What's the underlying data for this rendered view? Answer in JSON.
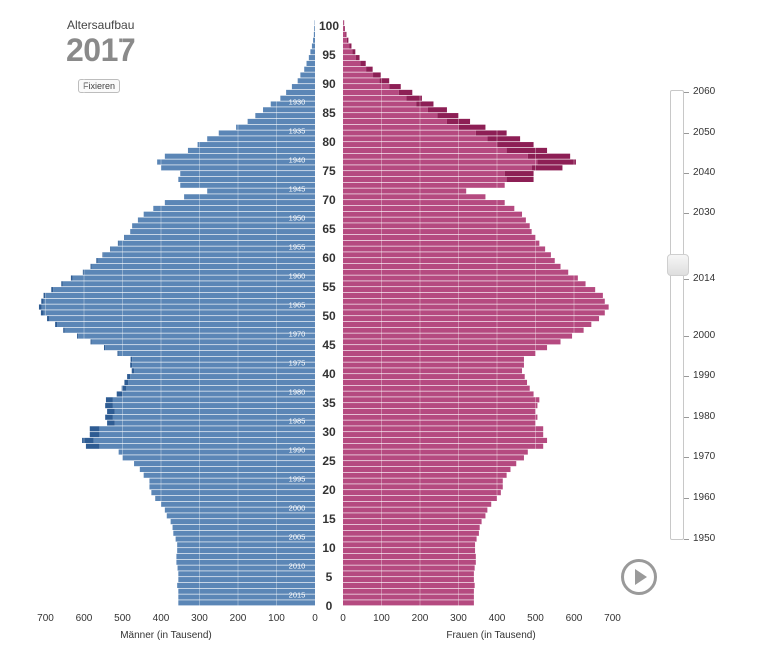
{
  "header": {
    "subtitle": "Altersaufbau",
    "year": "2017",
    "fix_button": "Fixieren"
  },
  "slider": {
    "labels": [
      "2060",
      "2050",
      "2040",
      "2030",
      "2014",
      "2000",
      "1990",
      "1980",
      "1970",
      "1960",
      "1950"
    ],
    "selected": "2014"
  },
  "play_icon": "play-icon",
  "colors": {
    "male": "#5b86b6",
    "male_dark": "#2e5c93",
    "female": "#b54a80",
    "female_dark": "#8d1f55"
  },
  "chart_data": {
    "type": "bar",
    "orientation": "horizontal-population-pyramid",
    "age_axis_ticks": [
      0,
      5,
      10,
      15,
      20,
      25,
      30,
      35,
      40,
      45,
      50,
      55,
      60,
      65,
      70,
      75,
      80,
      85,
      90,
      95,
      100
    ],
    "birth_year_labels": [
      {
        "age": 2,
        "label": "2015"
      },
      {
        "age": 7,
        "label": "2010"
      },
      {
        "age": 12,
        "label": "2005"
      },
      {
        "age": 17,
        "label": "2000"
      },
      {
        "age": 22,
        "label": "1995"
      },
      {
        "age": 27,
        "label": "1990"
      },
      {
        "age": 32,
        "label": "1985"
      },
      {
        "age": 37,
        "label": "1980"
      },
      {
        "age": 42,
        "label": "1975"
      },
      {
        "age": 47,
        "label": "1970"
      },
      {
        "age": 52,
        "label": "1965"
      },
      {
        "age": 57,
        "label": "1960"
      },
      {
        "age": 62,
        "label": "1955"
      },
      {
        "age": 67,
        "label": "1950"
      },
      {
        "age": 72,
        "label": "1945"
      },
      {
        "age": 77,
        "label": "1940"
      },
      {
        "age": 82,
        "label": "1935"
      },
      {
        "age": 87,
        "label": "1930"
      }
    ],
    "x_ticks": [
      0,
      100,
      200,
      300,
      400,
      500,
      600,
      700
    ],
    "xlim": [
      0,
      700
    ],
    "xlabel_left": "Männer (in Tausend)",
    "xlabel_right": "Frauen (in Tausend)",
    "series": [
      {
        "name": "Männer",
        "values": [
          355,
          355,
          355,
          358,
          355,
          355,
          357,
          360,
          360,
          358,
          358,
          362,
          368,
          370,
          375,
          385,
          390,
          400,
          415,
          425,
          430,
          430,
          445,
          455,
          470,
          500,
          510,
          560,
          575,
          560,
          560,
          520,
          525,
          520,
          525,
          525,
          500,
          490,
          485,
          480,
          470,
          475,
          475,
          510,
          545,
          580,
          615,
          650,
          670,
          690,
          705,
          710,
          705,
          700,
          680,
          655,
          630,
          600,
          580,
          565,
          550,
          530,
          510,
          495,
          480,
          475,
          460,
          445,
          420,
          390,
          340,
          280,
          350,
          355,
          350,
          400,
          410,
          390,
          330,
          305,
          280,
          250,
          205,
          175,
          155,
          135,
          115,
          90,
          75,
          60,
          45,
          38,
          28,
          22,
          16,
          12,
          8,
          5,
          3,
          2,
          1
        ]
      },
      {
        "name": "Frauen",
        "values": [
          340,
          340,
          340,
          342,
          340,
          340,
          342,
          345,
          345,
          343,
          343,
          347,
          353,
          355,
          360,
          370,
          375,
          385,
          400,
          410,
          415,
          415,
          425,
          435,
          450,
          470,
          480,
          520,
          530,
          520,
          520,
          500,
          505,
          500,
          505,
          510,
          495,
          485,
          478,
          472,
          465,
          470,
          470,
          500,
          530,
          565,
          595,
          625,
          645,
          665,
          680,
          690,
          680,
          675,
          655,
          630,
          610,
          585,
          565,
          550,
          540,
          525,
          510,
          500,
          490,
          485,
          475,
          465,
          445,
          420,
          370,
          320,
          420,
          425,
          420,
          490,
          505,
          480,
          425,
          400,
          375,
          345,
          300,
          270,
          245,
          220,
          190,
          165,
          145,
          120,
          95,
          78,
          60,
          45,
          33,
          24,
          16,
          10,
          6,
          3,
          2
        ]
      },
      {
        "name": "Männer (dunkel)",
        "values": [
          0,
          0,
          0,
          0,
          0,
          0,
          0,
          0,
          0,
          0,
          0,
          0,
          0,
          0,
          0,
          0,
          0,
          0,
          0,
          0,
          0,
          0,
          0,
          0,
          0,
          0,
          0,
          35,
          30,
          25,
          25,
          20,
          20,
          20,
          20,
          18,
          15,
          12,
          10,
          8,
          6,
          5,
          4,
          3,
          3,
          3,
          3,
          4,
          5,
          6,
          7,
          7,
          6,
          5,
          5,
          4,
          4,
          3,
          3,
          3,
          2,
          2,
          2,
          1,
          0,
          0,
          0,
          0,
          0,
          0,
          0,
          0,
          0,
          0,
          0,
          0,
          0,
          0,
          0,
          0,
          0,
          0,
          0,
          0,
          0,
          0,
          0,
          0,
          0,
          0,
          0,
          0,
          0,
          0,
          0,
          0,
          0,
          0,
          0,
          0,
          0
        ]
      },
      {
        "name": "Frauen (dunkel)",
        "values": [
          0,
          0,
          0,
          0,
          0,
          0,
          0,
          0,
          0,
          0,
          0,
          0,
          0,
          0,
          0,
          0,
          0,
          0,
          0,
          0,
          0,
          0,
          0,
          0,
          0,
          0,
          0,
          0,
          0,
          0,
          0,
          0,
          0,
          0,
          0,
          0,
          0,
          0,
          0,
          0,
          0,
          0,
          0,
          0,
          0,
          0,
          0,
          0,
          0,
          0,
          0,
          0,
          0,
          0,
          0,
          0,
          0,
          0,
          0,
          0,
          0,
          0,
          0,
          0,
          0,
          0,
          0,
          0,
          0,
          0,
          0,
          0,
          0,
          70,
          75,
          80,
          100,
          110,
          105,
          95,
          85,
          80,
          70,
          60,
          55,
          50,
          45,
          40,
          35,
          30,
          25,
          20,
          17,
          14,
          10,
          8,
          6,
          4,
          3,
          2,
          1
        ]
      }
    ],
    "grid": true
  }
}
